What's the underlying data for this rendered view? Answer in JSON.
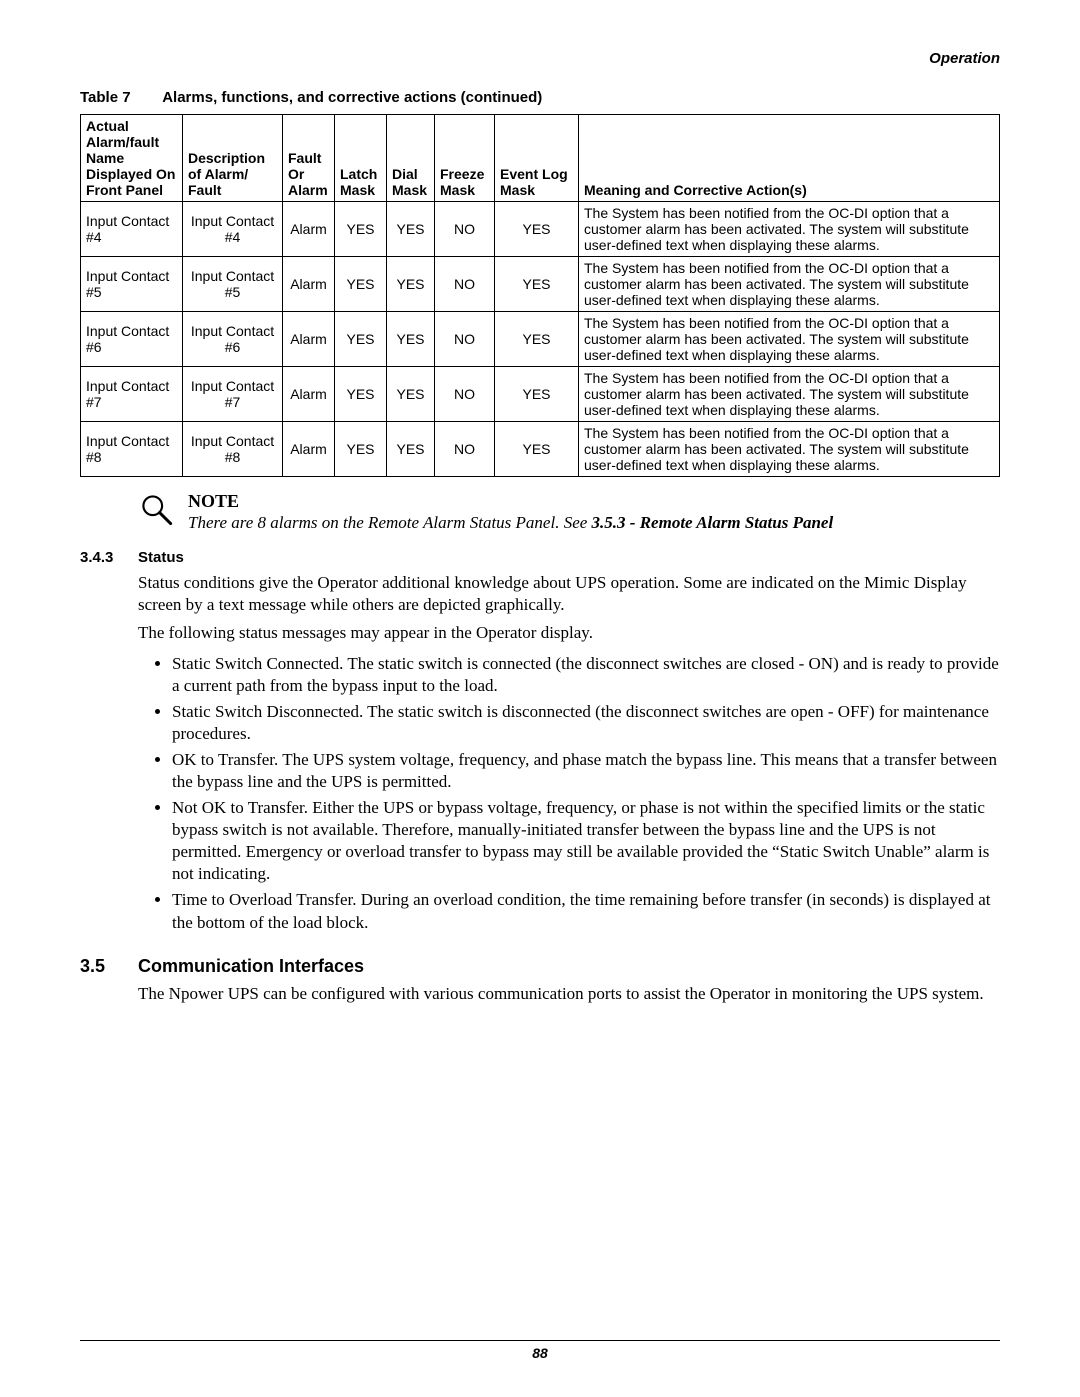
{
  "header": {
    "label": "Operation"
  },
  "table": {
    "caption_num": "Table 7",
    "caption_title": "Alarms, functions, and corrective actions (continued)",
    "columns": [
      "Actual Alarm/fault Name Displayed On Front Panel",
      "Description of Alarm/ Fault",
      "Fault Or Alarm",
      "Latch Mask",
      "Dial Mask",
      "Freeze Mask",
      "Event Log Mask",
      "Meaning and Corrective Action(s)"
    ],
    "rows": [
      {
        "name": "Input Contact #4",
        "desc": "Input Contact #4",
        "fault": "Alarm",
        "latch": "YES",
        "dial": "YES",
        "freeze": "NO",
        "event": "YES",
        "meaning": "The System has been notified from the OC-DI option that a customer alarm has been activated. The system will substitute user-defined text when displaying these alarms."
      },
      {
        "name": "Input Contact #5",
        "desc": "Input Contact #5",
        "fault": "Alarm",
        "latch": "YES",
        "dial": "YES",
        "freeze": "NO",
        "event": "YES",
        "meaning": "The System has been notified from the OC-DI option that a customer alarm has been activated. The system will substitute user-defined text when displaying these alarms."
      },
      {
        "name": "Input Contact #6",
        "desc": "Input Contact #6",
        "fault": "Alarm",
        "latch": "YES",
        "dial": "YES",
        "freeze": "NO",
        "event": "YES",
        "meaning": "The System has been notified from the OC-DI option that a customer alarm has been activated. The system will substitute user-defined text when displaying these alarms."
      },
      {
        "name": "Input Contact #7",
        "desc": "Input Contact #7",
        "fault": "Alarm",
        "latch": "YES",
        "dial": "YES",
        "freeze": "NO",
        "event": "YES",
        "meaning": "The System has been notified from the OC-DI option that a customer alarm has been activated. The system will substitute user-defined text when displaying these alarms."
      },
      {
        "name": "Input Contact #8",
        "desc": "Input Contact #8",
        "fault": "Alarm",
        "latch": "YES",
        "dial": "YES",
        "freeze": "NO",
        "event": "YES",
        "meaning": "The System has been notified from the OC-DI option that a customer alarm has been activated. The system will substitute user-defined text when displaying these alarms."
      }
    ]
  },
  "note": {
    "title": "NOTE",
    "text_prefix": "There are 8 alarms on the Remote Alarm Status Panel. See ",
    "text_bold": "3.5.3 - Remote Alarm Status Panel"
  },
  "section_343": {
    "num": "3.4.3",
    "title": "Status",
    "para1": "Status conditions give the Operator additional knowledge about UPS operation. Some are indicated on the Mimic Display screen by a text message while others are depicted graphically.",
    "para2": "The following status messages may appear in the Operator display.",
    "bullets": [
      "Static Switch Connected. The static switch is connected (the disconnect switches are closed - ON) and is ready to provide a current path from the bypass input to the load.",
      "Static Switch Disconnected. The static switch is disconnected (the disconnect switches are open - OFF) for maintenance procedures.",
      "OK to Transfer. The UPS system voltage, frequency, and phase match the bypass line. This means that a transfer between the bypass line and the UPS is permitted.",
      "Not OK to Transfer. Either the UPS or bypass voltage, frequency, or phase is not within the specified limits or the static bypass switch is not available. Therefore, manually-initiated transfer between the bypass line and the UPS is not permitted. Emergency or overload transfer to bypass may still be available provided the “Static Switch Unable” alarm is not indicating.",
      "Time to Overload Transfer. During an overload condition, the time remaining before transfer (in seconds) is displayed at the bottom of the load block."
    ]
  },
  "section_35": {
    "num": "3.5",
    "title": "Communication Interfaces",
    "para1": "The Npower UPS can be configured with various communication ports to assist the Operator in monitoring the UPS system."
  },
  "footer": {
    "page_number": "88"
  }
}
